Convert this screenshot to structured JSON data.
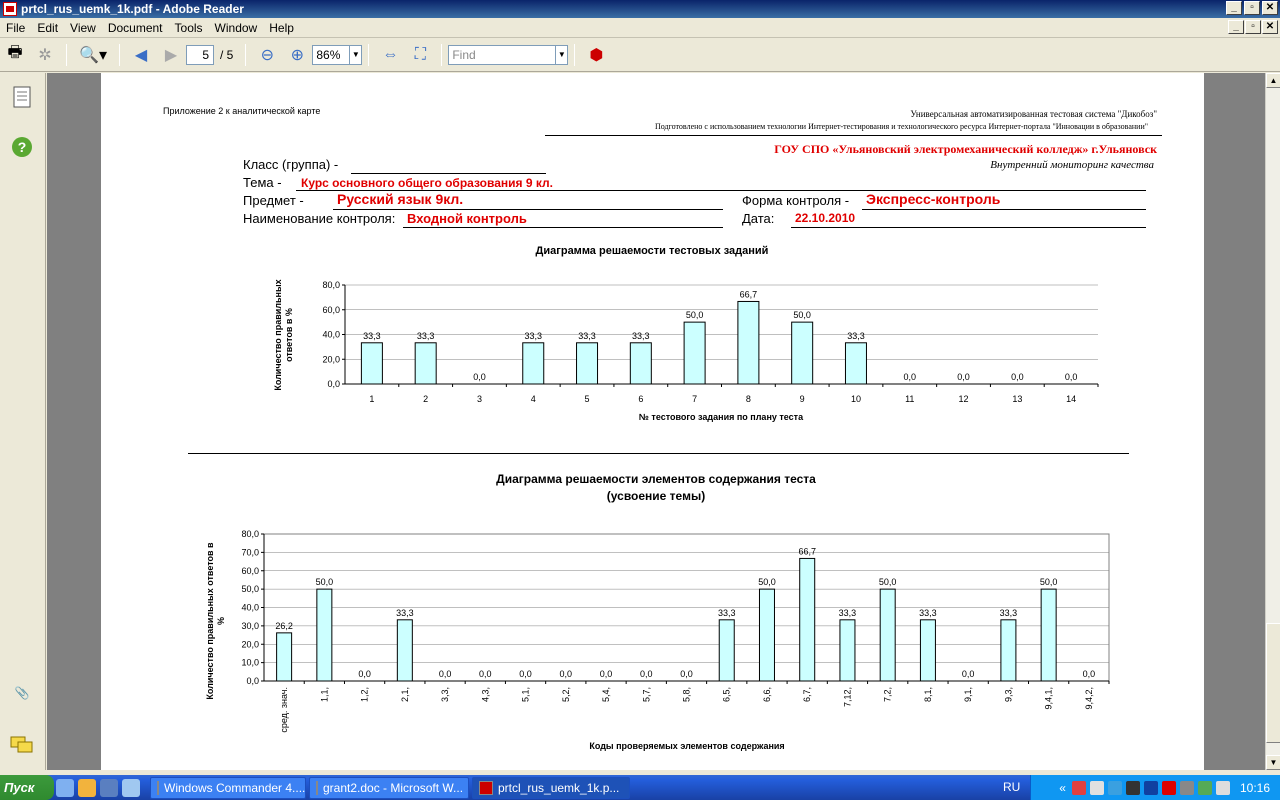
{
  "window": {
    "title": "prtcl_rus_uemk_1k.pdf - Adobe Reader"
  },
  "menu": [
    "File",
    "Edit",
    "View",
    "Document",
    "Tools",
    "Window",
    "Help"
  ],
  "toolbar": {
    "page_current": "5",
    "page_total": "/ 5",
    "zoom": "86%",
    "find_placeholder": "Find"
  },
  "header": {
    "appendix": "Приложение 2 к аналитической карте",
    "system": "Универсальная автоматизированная тестовая система \"Дикобоз\"",
    "prepared": "Подготовлено с использованием технологии Интернет-тестирования и технологического ресурса  Интернет-портала \"Инновации в образовании\"",
    "college": "ГОУ СПО «Ульяновский электромеханический колледж» г.Ульяновск",
    "monitoring": "Внутренний мониторинг  качества"
  },
  "form": {
    "class_label": "Класс (группа) -",
    "topic_label": "Тема -",
    "topic_value": "Курс основного общего образования 9 кл.",
    "subject_label": "Предмет  -",
    "subject_value": "Русский язык 9кл.",
    "control_form_label": "Форма контроля -",
    "control_form_value": "Экспресс-контроль",
    "control_name_label": "Наименование контроля:",
    "control_name_value": "Входной контроль",
    "date_label": "Дата:",
    "date_value": "22.10.2010"
  },
  "chart_data": [
    {
      "type": "bar",
      "title": "Диаграмма решаемости тестовых заданий",
      "xlabel": "№ тестового задания по плану теста",
      "ylabel": "Количество правильных ответов в %",
      "ylim": [
        0,
        80
      ],
      "yticks": [
        "0,0",
        "20,0",
        "40,0",
        "60,0",
        "80,0"
      ],
      "categories": [
        "1",
        "2",
        "3",
        "4",
        "5",
        "6",
        "7",
        "8",
        "9",
        "10",
        "11",
        "12",
        "13",
        "14"
      ],
      "values": [
        33.3,
        33.3,
        0,
        33.3,
        33.3,
        33.3,
        50,
        66.7,
        50,
        33.3,
        0,
        0,
        0,
        0
      ],
      "labels": [
        "33,3",
        "33,3",
        "0,0",
        "33,3",
        "33,3",
        "33,3",
        "50,0",
        "66,7",
        "50,0",
        "33,3",
        "0,0",
        "0,0",
        "0,0",
        "0,0"
      ],
      "grid": true
    },
    {
      "type": "bar",
      "title": "Диаграмма решаемости элементов содержания теста",
      "subtitle": "(усвоение темы)",
      "xlabel": "Коды проверяемых элементов содержания",
      "ylabel": "Количество правильных ответов в %",
      "ylim": [
        0,
        80
      ],
      "yticks": [
        "0,0",
        "10,0",
        "20,0",
        "30,0",
        "40,0",
        "50,0",
        "60,0",
        "70,0",
        "80,0"
      ],
      "categories": [
        "сред. знач.",
        "1,1,",
        "1,2,",
        "2,1,",
        "3,3,",
        "4,3,",
        "5,1,",
        "5,2,",
        "5,4,",
        "5,7,",
        "5,8,",
        "6,5,",
        "6,6,",
        "6,7,",
        "7,12,",
        "7,2,",
        "8,1,",
        "9,1,",
        "9,3,",
        "9,4,1,",
        "9,4,2,"
      ],
      "values": [
        26.2,
        50,
        0,
        33.3,
        0,
        0,
        0,
        0,
        0,
        0,
        0,
        33.3,
        50,
        66.7,
        33.3,
        50,
        33.3,
        0,
        33.3,
        50,
        0
      ],
      "labels": [
        "26,2",
        "50,0",
        "0,0",
        "33,3",
        "0,0",
        "0,0",
        "0,0",
        "0,0",
        "0,0",
        "0,0",
        "0,0",
        "33,3",
        "50,0",
        "66,7",
        "33,3",
        "50,0",
        "33,3",
        "0,0",
        "33,3",
        "50,0",
        "0,0"
      ],
      "grid": true
    }
  ],
  "taskbar": {
    "start": "Пуск",
    "tasks": [
      "Windows Commander 4....",
      "grant2.doc - Microsoft W...",
      "prtcl_rus_uemk_1k.p..."
    ],
    "lang": "RU",
    "clock": "10:16"
  }
}
